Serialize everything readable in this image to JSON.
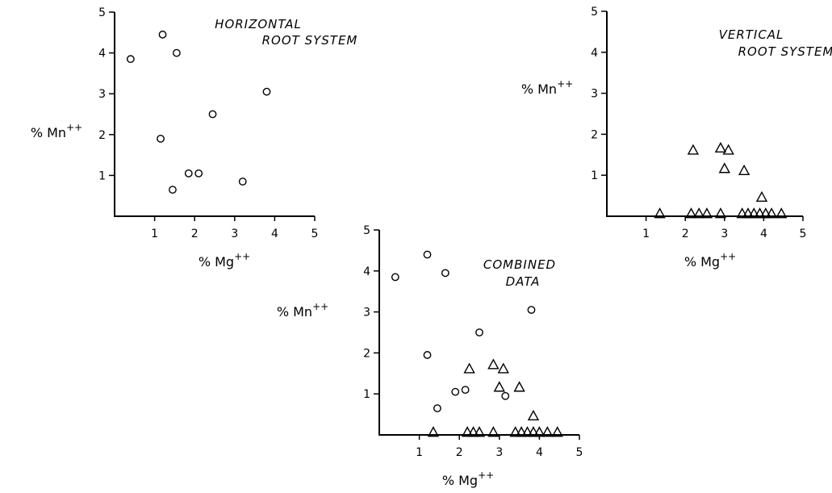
{
  "chart_data": [
    {
      "id": "horizontal",
      "type": "scatter",
      "title": [
        "HORIZONTAL",
        "ROOT SYSTEM"
      ],
      "xlabel": "% Mg",
      "xlabel_sup": "++",
      "ylabel": "% Mn",
      "ylabel_sup": "++",
      "xlim": [
        0,
        5
      ],
      "ylim": [
        0,
        5
      ],
      "xticks": [
        "1",
        "2",
        "3",
        "4",
        "5"
      ],
      "yticks": [
        "1",
        "2",
        "3",
        "4",
        "5"
      ],
      "series": [
        {
          "marker": "circle",
          "points": [
            [
              0.4,
              3.85
            ],
            [
              1.2,
              4.45
            ],
            [
              1.55,
              4.0
            ],
            [
              3.8,
              3.05
            ],
            [
              2.45,
              2.5
            ],
            [
              1.15,
              1.9
            ],
            [
              1.85,
              1.05
            ],
            [
              2.1,
              1.05
            ],
            [
              3.2,
              0.85
            ],
            [
              1.45,
              0.65
            ]
          ]
        }
      ]
    },
    {
      "id": "vertical",
      "type": "scatter",
      "title": [
        "VERTICAL",
        "ROOT SYSTEM"
      ],
      "xlabel": "% Mg",
      "xlabel_sup": "++",
      "ylabel": "% Mn",
      "ylabel_sup": "++",
      "xlim": [
        0,
        5
      ],
      "ylim": [
        0,
        5
      ],
      "xticks": [
        "1",
        "2",
        "3",
        "4",
        "5"
      ],
      "yticks": [
        "1",
        "2",
        "3",
        "4",
        "5"
      ],
      "series": [
        {
          "marker": "triangle",
          "points": [
            [
              2.2,
              1.6
            ],
            [
              2.9,
              1.65
            ],
            [
              3.1,
              1.6
            ],
            [
              3.0,
              1.15
            ],
            [
              3.5,
              1.1
            ],
            [
              3.95,
              0.45
            ],
            [
              1.35,
              0.05
            ],
            [
              2.15,
              0.05
            ],
            [
              2.35,
              0.05
            ],
            [
              2.55,
              0.05
            ],
            [
              2.9,
              0.05
            ],
            [
              3.45,
              0.05
            ],
            [
              3.6,
              0.05
            ],
            [
              3.75,
              0.05
            ],
            [
              3.9,
              0.05
            ],
            [
              4.05,
              0.05
            ],
            [
              4.2,
              0.05
            ],
            [
              4.45,
              0.05
            ]
          ]
        }
      ]
    },
    {
      "id": "combined",
      "type": "scatter",
      "title": [
        "COMBINED",
        "DATA"
      ],
      "xlabel": "% Mg",
      "xlabel_sup": "++",
      "ylabel": "% Mn",
      "ylabel_sup": "++",
      "xlim": [
        0,
        5
      ],
      "ylim": [
        0,
        5
      ],
      "xticks": [
        "1",
        "2",
        "3",
        "4",
        "5"
      ],
      "yticks": [
        "1",
        "2",
        "3",
        "4",
        "5"
      ],
      "series": [
        {
          "marker": "circle",
          "points": [
            [
              0.4,
              3.85
            ],
            [
              1.2,
              4.4
            ],
            [
              1.65,
              3.95
            ],
            [
              3.8,
              3.05
            ],
            [
              2.5,
              2.5
            ],
            [
              1.2,
              1.95
            ],
            [
              1.9,
              1.05
            ],
            [
              2.15,
              1.1
            ],
            [
              3.15,
              0.95
            ],
            [
              1.45,
              0.65
            ]
          ]
        },
        {
          "marker": "triangle",
          "points": [
            [
              2.25,
              1.6
            ],
            [
              2.85,
              1.7
            ],
            [
              3.1,
              1.6
            ],
            [
              3.0,
              1.15
            ],
            [
              3.5,
              1.15
            ],
            [
              3.85,
              0.45
            ],
            [
              1.35,
              0.05
            ],
            [
              2.2,
              0.05
            ],
            [
              2.35,
              0.05
            ],
            [
              2.5,
              0.05
            ],
            [
              2.85,
              0.05
            ],
            [
              3.4,
              0.05
            ],
            [
              3.55,
              0.05
            ],
            [
              3.7,
              0.05
            ],
            [
              3.85,
              0.05
            ],
            [
              4.0,
              0.05
            ],
            [
              4.2,
              0.05
            ],
            [
              4.45,
              0.05
            ]
          ]
        }
      ]
    }
  ]
}
